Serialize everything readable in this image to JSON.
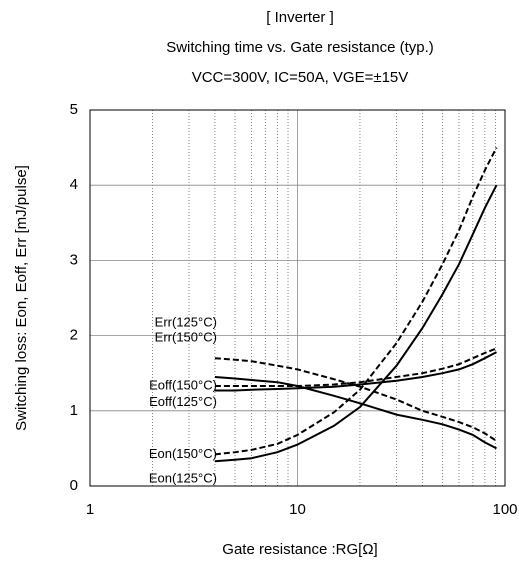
{
  "chart_data": {
    "type": "line",
    "title": "[ Inverter ]",
    "subtitle": "Switching time vs. Gate resistance (typ.)",
    "conditions": "VCC=300V, IC=50A, VGE=±15V",
    "x_label": "Gate resistance :RG[Ω]",
    "y_label": "Switching loss: Eon, Eoff, Err [mJ/pulse]",
    "x": [
      4,
      5,
      6,
      8,
      10,
      15,
      20,
      30,
      40,
      50,
      60,
      70,
      80,
      91
    ],
    "series": [
      {
        "name": "Eon(125°C)",
        "color": "#000000",
        "dashed": false,
        "values": [
          0.33,
          0.35,
          0.37,
          0.45,
          0.55,
          0.8,
          1.05,
          1.6,
          2.1,
          2.55,
          2.95,
          3.35,
          3.7,
          4.0
        ]
      },
      {
        "name": "Eon(150°C)",
        "color": "#000000",
        "dashed": true,
        "values": [
          0.42,
          0.45,
          0.48,
          0.56,
          0.68,
          0.98,
          1.28,
          1.9,
          2.45,
          2.95,
          3.4,
          3.85,
          4.2,
          4.5
        ]
      },
      {
        "name": "Eoff(125°C)",
        "color": "#000000",
        "dashed": false,
        "values": [
          1.27,
          1.27,
          1.28,
          1.29,
          1.3,
          1.32,
          1.35,
          1.4,
          1.45,
          1.5,
          1.55,
          1.62,
          1.7,
          1.78
        ]
      },
      {
        "name": "Eoff(150°C)",
        "color": "#000000",
        "dashed": true,
        "values": [
          1.33,
          1.33,
          1.33,
          1.33,
          1.33,
          1.35,
          1.38,
          1.45,
          1.5,
          1.56,
          1.62,
          1.7,
          1.77,
          1.83
        ]
      },
      {
        "name": "Err(125°C)",
        "color": "#000000",
        "dashed": false,
        "values": [
          1.45,
          1.43,
          1.41,
          1.38,
          1.33,
          1.2,
          1.1,
          0.95,
          0.88,
          0.82,
          0.75,
          0.68,
          0.58,
          0.5
        ]
      },
      {
        "name": "Err(150°C)",
        "color": "#000000",
        "dashed": true,
        "values": [
          1.7,
          1.68,
          1.66,
          1.6,
          1.55,
          1.42,
          1.32,
          1.15,
          1.0,
          0.92,
          0.85,
          0.78,
          0.7,
          0.6
        ]
      }
    ],
    "xscale": "log",
    "xlim": [
      1,
      100
    ],
    "xticks": [
      1,
      10,
      100
    ],
    "minor_xticks": [
      2,
      3,
      4,
      5,
      6,
      7,
      8,
      9,
      20,
      30,
      40,
      50,
      60,
      70,
      80,
      90
    ],
    "ylim": [
      0,
      5
    ],
    "yticks": [
      0,
      1,
      2,
      3,
      4,
      5
    ],
    "grid": true
  }
}
